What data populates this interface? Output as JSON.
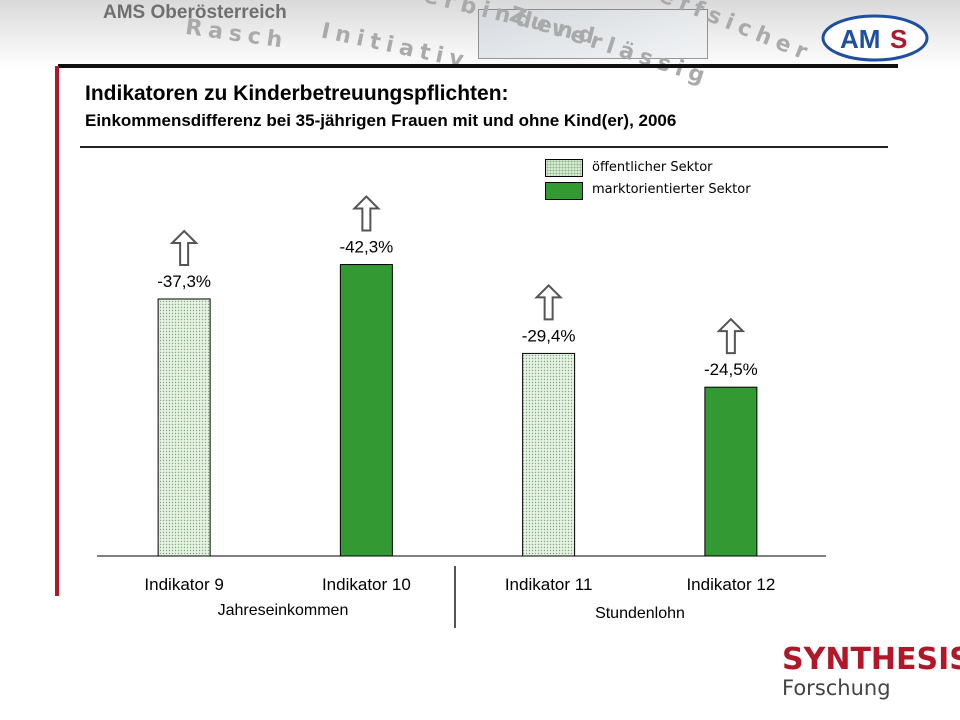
{
  "header": {
    "org_name": "AMS Oberösterreich",
    "slogan_words": [
      "Rasch",
      "Initiativ",
      "Verbindend",
      "Zuverlässig",
      "Treffsicher"
    ],
    "logo_text_1": "AM",
    "logo_text_2": "S"
  },
  "slide": {
    "title": "Indikatoren zu Kinderbetreuungspflichten:",
    "subtitle": "Einkommensdifferenz bei 35-jährigen Frauen mit und ohne Kind(er), 2006"
  },
  "footer": {
    "company": "SYNTHESIS",
    "division": "Forschung"
  },
  "colors": {
    "accent_red": "#b0182a",
    "public_sector": "#d6ead2",
    "market_sector": "#339933",
    "ams_blue": "#1f4fa0"
  },
  "chart_data": {
    "type": "bar",
    "categories": [
      "Indikator 9",
      "Indikator 10",
      "Indikator 11",
      "Indikator 12"
    ],
    "values": [
      -37.3,
      -42.3,
      -29.4,
      -24.5
    ],
    "labels": [
      "-37,3%",
      "-42,3%",
      "-29,4%",
      "-24,5%"
    ],
    "sector": [
      "public",
      "market",
      "public",
      "market"
    ],
    "groups": [
      {
        "label": "Jahreseinkommen",
        "categories": [
          "Indikator 9",
          "Indikator 10"
        ]
      },
      {
        "label": "Stundenlohn",
        "categories": [
          "Indikator 11",
          "Indikator 12"
        ]
      }
    ],
    "legend": [
      {
        "key": "public",
        "label": "öffentlicher Sektor"
      },
      {
        "key": "market",
        "label": "marktorientierter Sektor"
      }
    ],
    "legend_position": "top-right",
    "title": "",
    "xlabel": "",
    "ylabel": "",
    "ylim": [
      0,
      50
    ],
    "grid": false,
    "bar_direction": "magnitude upward (negative differences)"
  }
}
